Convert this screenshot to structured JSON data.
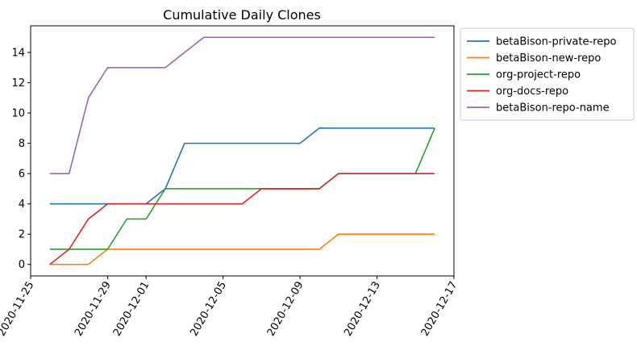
{
  "chart_data": {
    "type": "line",
    "title": "Cumulative Daily Clones",
    "xlabel": "",
    "ylabel": "",
    "x": [
      "2020-11-26",
      "2020-11-27",
      "2020-11-28",
      "2020-11-29",
      "2020-11-30",
      "2020-12-01",
      "2020-12-02",
      "2020-12-03",
      "2020-12-04",
      "2020-12-05",
      "2020-12-06",
      "2020-12-07",
      "2020-12-08",
      "2020-12-09",
      "2020-12-10",
      "2020-12-11",
      "2020-12-12",
      "2020-12-13",
      "2020-12-14",
      "2020-12-15",
      "2020-12-16"
    ],
    "xlim": [
      "2020-11-25",
      "2020-12-17"
    ],
    "xticks": [
      "2020-11-25",
      "2020-11-29",
      "2020-12-01",
      "2020-12-05",
      "2020-12-09",
      "2020-12-13",
      "2020-12-17"
    ],
    "ylim": [
      -0.76,
      15.76
    ],
    "yticks": [
      0,
      2,
      4,
      6,
      8,
      10,
      12,
      14
    ],
    "grid": false,
    "legend_position": "outside top-right",
    "series": [
      {
        "name": "betaBison-private-repo",
        "color": "#1f77b4",
        "values": [
          4,
          4,
          4,
          4,
          4,
          4,
          5,
          8,
          8,
          8,
          8,
          8,
          8,
          8,
          9,
          9,
          9,
          9,
          9,
          9,
          9
        ]
      },
      {
        "name": "betaBison-new-repo",
        "color": "#ff7f0e",
        "values": [
          0,
          0,
          0,
          1,
          1,
          1,
          1,
          1,
          1,
          1,
          1,
          1,
          1,
          1,
          1,
          2,
          2,
          2,
          2,
          2,
          2
        ]
      },
      {
        "name": "org-project-repo",
        "color": "#2ca02c",
        "values": [
          1,
          1,
          1,
          1,
          3,
          3,
          5,
          5,
          5,
          5,
          5,
          5,
          5,
          5,
          5,
          6,
          6,
          6,
          6,
          6,
          9
        ]
      },
      {
        "name": "org-docs-repo",
        "color": "#d62728",
        "values": [
          0,
          1,
          3,
          4,
          4,
          4,
          4,
          4,
          4,
          4,
          4,
          5,
          5,
          5,
          5,
          6,
          6,
          6,
          6,
          6,
          6
        ]
      },
      {
        "name": "betaBison-repo-name",
        "color": "#9467bd",
        "values": [
          6,
          6,
          11,
          13,
          13,
          13,
          13,
          14,
          15,
          15,
          15,
          15,
          15,
          15,
          15,
          15,
          15,
          15,
          15,
          15,
          15
        ]
      }
    ]
  }
}
